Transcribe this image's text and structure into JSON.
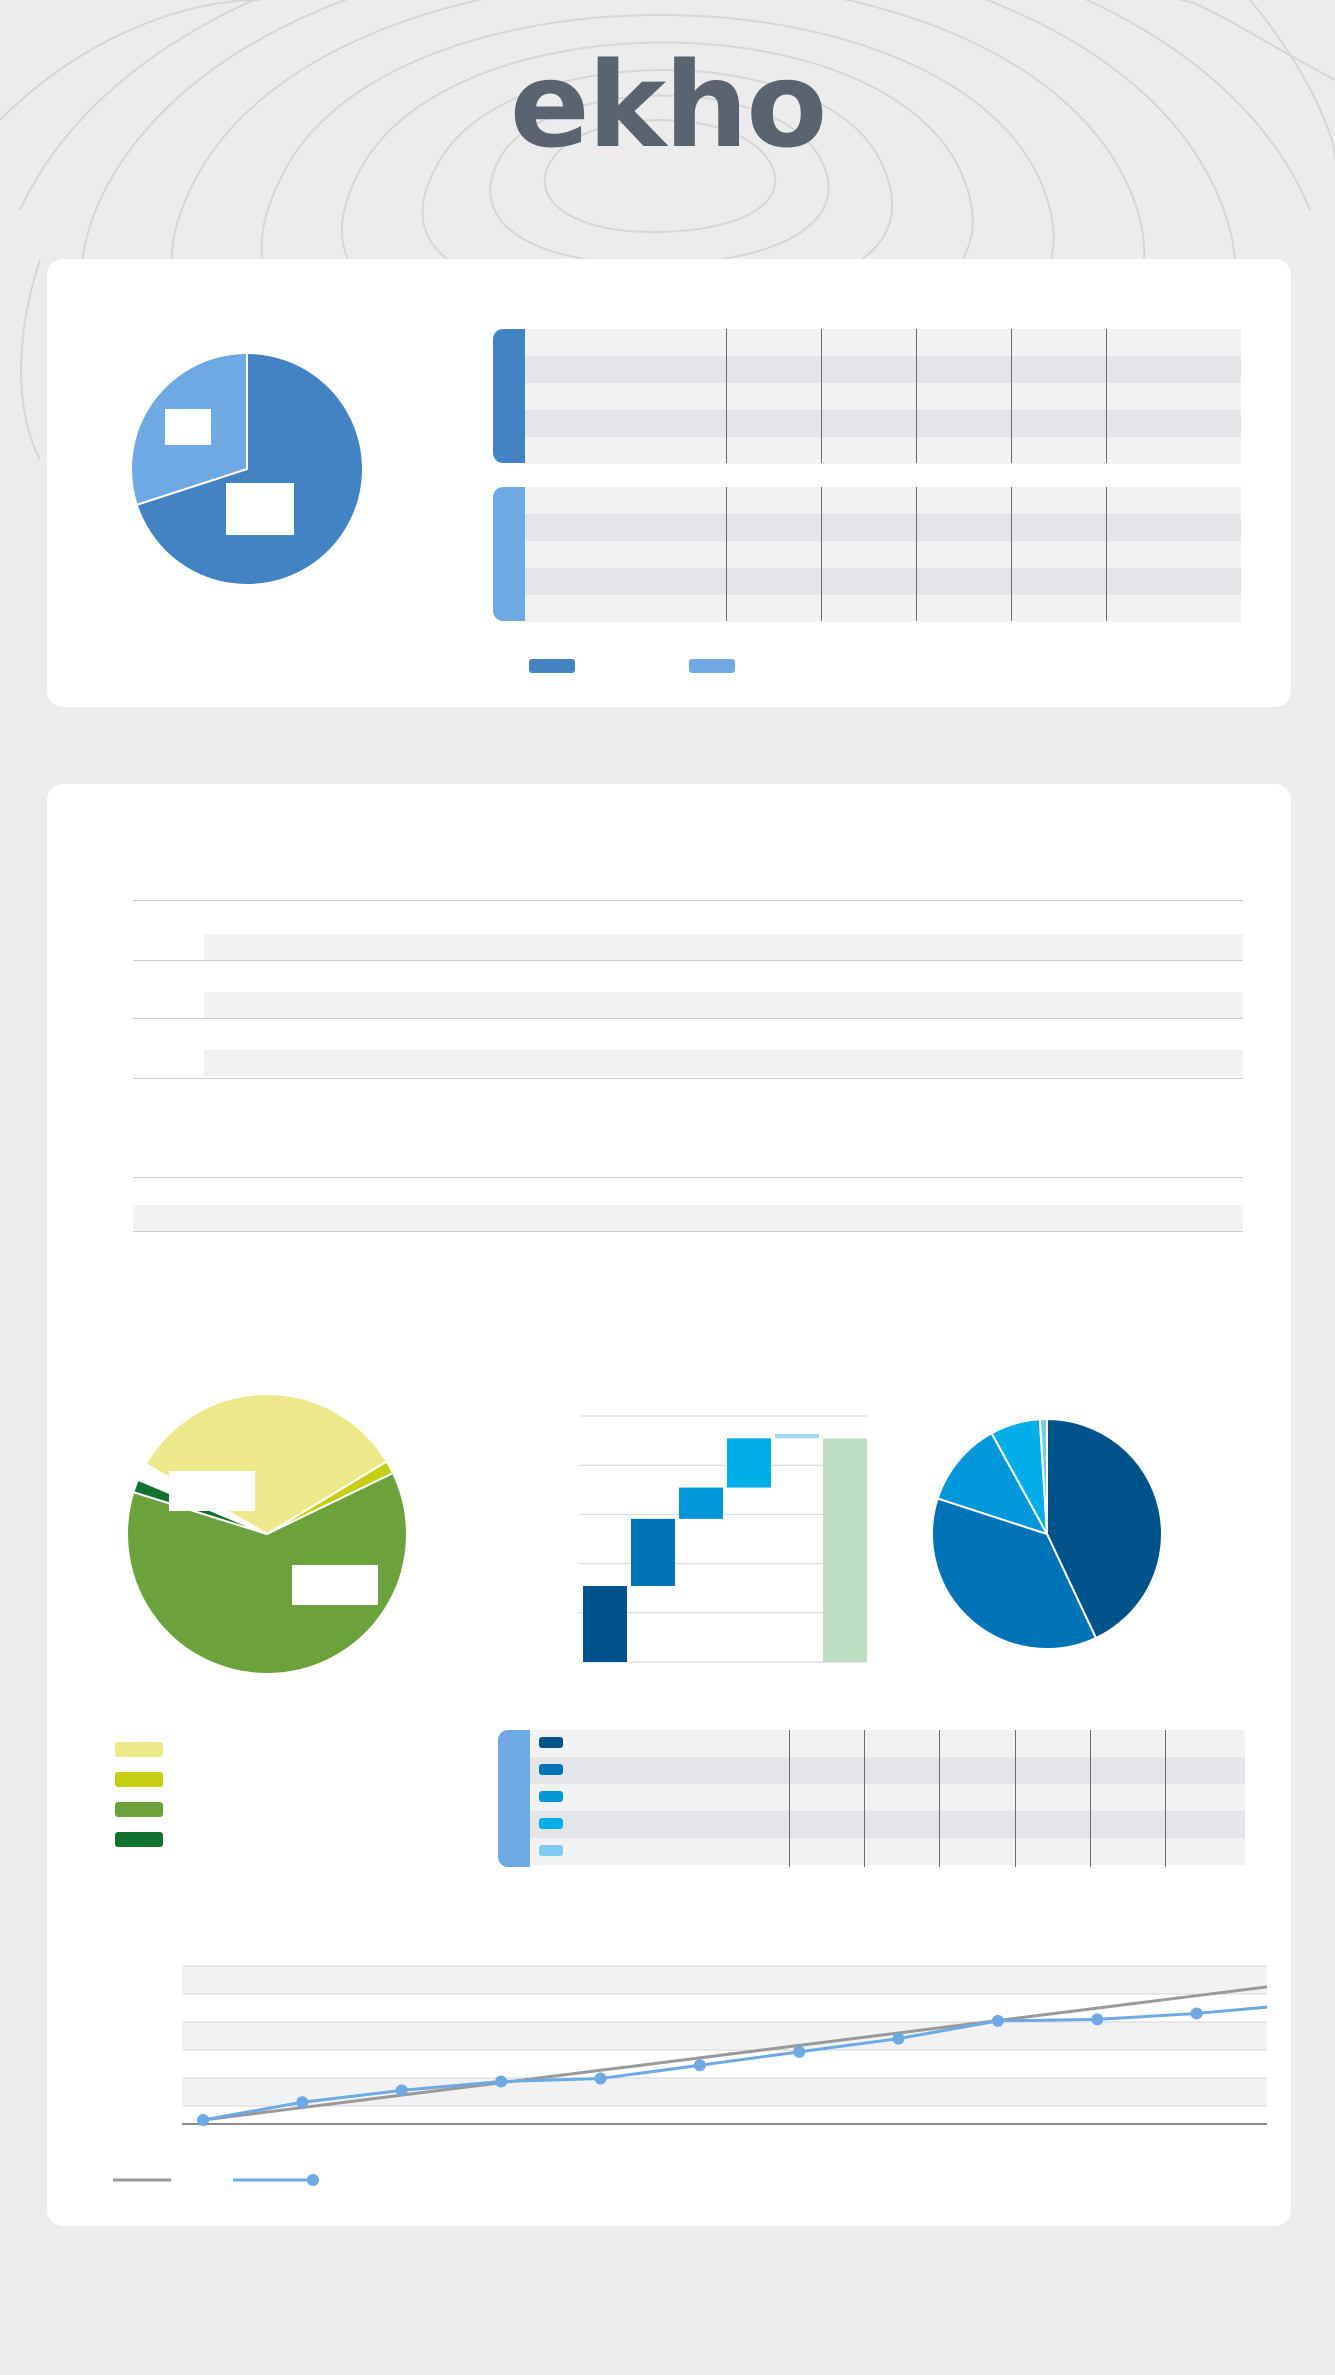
{
  "brand": {
    "logo_text": "ekho",
    "logo_color": "#5a6470"
  },
  "colors": {
    "background": "#ececec",
    "card": "#ffffff",
    "blue_dark": "#4383c4",
    "blue_light": "#6ea9e4",
    "table_row_a": "#e4e5e8",
    "table_row_b": "#f1f2f4"
  },
  "chart_data": [
    {
      "type": "pie",
      "slices": [
        {
          "label": "",
          "value": 70,
          "color": "#4383c4"
        },
        {
          "label": "",
          "value": 30,
          "color": "#6ea9e4"
        }
      ]
    },
    {
      "type": "table",
      "groups": [
        {
          "color": "#4383c4",
          "rows": 5,
          "columns": 6
        },
        {
          "color": "#6ea9e4",
          "rows": 5,
          "columns": 6
        }
      ],
      "legend": [
        {
          "label": "",
          "color": "#4383c4"
        },
        {
          "label": "",
          "color": "#6ea9e4"
        }
      ]
    },
    {
      "type": "bar",
      "orientation": "horizontal",
      "categories": [
        "",
        "",
        "",
        ""
      ],
      "values": [
        0,
        0,
        0,
        0
      ]
    },
    {
      "type": "pie",
      "slices": [
        {
          "label": "",
          "value": 33,
          "color": "#ede98b"
        },
        {
          "label": "",
          "value": 1.5,
          "color": "#c5cf10"
        },
        {
          "label": "",
          "value": 62,
          "color": "#6ca23c"
        },
        {
          "label": "",
          "value": 1.5,
          "color": "#11722f"
        },
        {
          "label": "",
          "value": 2,
          "color": "#ffffff"
        }
      ],
      "legend": [
        {
          "label": "",
          "color": "#ede98b"
        },
        {
          "label": "",
          "color": "#c5cf10"
        },
        {
          "label": "",
          "color": "#6ca23c"
        },
        {
          "label": "",
          "color": "#11722f"
        }
      ]
    },
    {
      "type": "bar",
      "subtype": "waterfall",
      "categories": [
        "",
        "",
        "",
        "",
        "",
        ""
      ],
      "values": [
        17,
        15,
        7,
        11,
        1,
        50
      ],
      "colors": [
        "#00528b",
        "#0073b6",
        "#0097da",
        "#00aeea",
        "#9fd9f5",
        "#bcdfc4"
      ],
      "total_index": 5,
      "ylim": [
        0,
        55
      ]
    },
    {
      "type": "pie",
      "slices": [
        {
          "label": "",
          "value": 43,
          "color": "#00528b"
        },
        {
          "label": "",
          "value": 37,
          "color": "#0073b6"
        },
        {
          "label": "",
          "value": 12,
          "color": "#0097da"
        },
        {
          "label": "",
          "value": 7,
          "color": "#00aeea"
        },
        {
          "label": "",
          "value": 1,
          "color": "#7fcbef"
        }
      ]
    },
    {
      "type": "table",
      "groups": [
        {
          "color": "#6ea9e4",
          "rows": 5,
          "columns": 6
        }
      ],
      "row_colors": [
        "#00528b",
        "#0073b6",
        "#0097da",
        "#00aeea",
        "#7fcbef"
      ]
    },
    {
      "type": "line",
      "x": [
        0,
        1,
        2,
        3,
        4,
        5,
        6,
        7,
        8,
        9,
        10,
        11
      ],
      "series": [
        {
          "name": "",
          "color": "#999999",
          "markers": false,
          "values": [
            0,
            8.4,
            16.8,
            25.2,
            33.6,
            42,
            50.4,
            58.8,
            67.2,
            75.6,
            84,
            92.4
          ]
        },
        {
          "name": "",
          "color": "#6ea9e4",
          "markers": true,
          "values": [
            0,
            12,
            20,
            26,
            28,
            37,
            46,
            55,
            67,
            68,
            72,
            78
          ]
        }
      ],
      "ylim": [
        0,
        100
      ]
    }
  ]
}
